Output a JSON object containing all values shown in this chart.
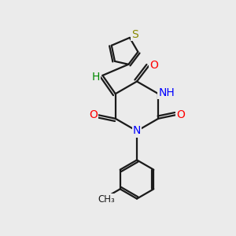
{
  "background_color": "#ebebeb",
  "bond_color": "#1a1a1a",
  "N_color": "#0000ff",
  "O_color": "#ff0000",
  "S_color": "#888800",
  "H_color": "#008800",
  "C_color": "#1a1a1a",
  "figsize": [
    3.0,
    3.0
  ],
  "dpi": 100,
  "xlim": [
    0,
    10
  ],
  "ylim": [
    0,
    10
  ]
}
